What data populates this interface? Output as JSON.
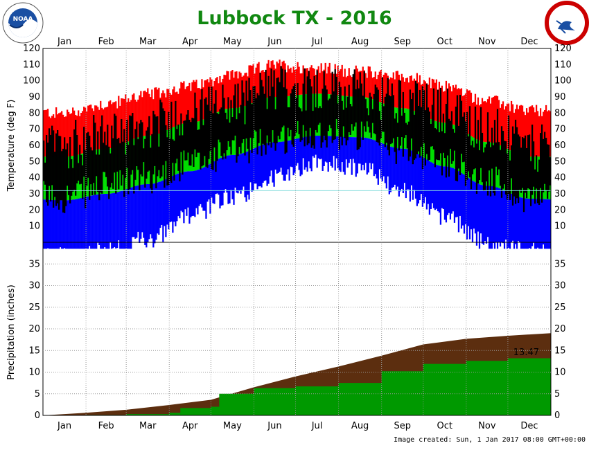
{
  "title": "Lubbock TX - 2016",
  "footer": "Image created: Sun, 1 Jan 2017 08:00 GMT+00:00",
  "colors": {
    "title": "#118811",
    "record_high": "#ff0000",
    "record_low": "#0000ff",
    "normal_range": "#00dd00",
    "observed": "#000000",
    "normal_precip": "#5c2e0f",
    "observed_precip": "#009900",
    "normal_line": "#88dddd"
  },
  "logos": {
    "left": "NOAA",
    "right": "NATIONAL WEATHER SERVICE"
  },
  "chart_data": [
    {
      "type": "bar",
      "ylabel": "Temperature (deg F)",
      "ylim": [
        0,
        120
      ],
      "yticks": [
        10,
        20,
        30,
        40,
        50,
        60,
        70,
        80,
        90,
        100,
        110,
        120
      ],
      "month_labels": [
        "Jan",
        "Feb",
        "Mar",
        "Apr",
        "May",
        "Jun",
        "Jul",
        "Aug",
        "Sep",
        "Oct",
        "Nov",
        "Dec"
      ],
      "series": [
        {
          "name": "record_high",
          "values_by_month": [
            78,
            84,
            90,
            95,
            102,
            108,
            106,
            104,
            101,
            95,
            86,
            80
          ]
        },
        {
          "name": "normal_high",
          "values_by_month": [
            53,
            58,
            66,
            74,
            83,
            90,
            92,
            90,
            83,
            74,
            62,
            53
          ]
        },
        {
          "name": "normal_low",
          "values_by_month": [
            26,
            30,
            36,
            44,
            54,
            62,
            66,
            65,
            58,
            47,
            35,
            27
          ]
        },
        {
          "name": "record_low",
          "values_by_month": [
            -2,
            0,
            8,
            22,
            34,
            46,
            55,
            52,
            38,
            22,
            5,
            0
          ]
        },
        {
          "name": "observed_high",
          "values_by_month": [
            60,
            66,
            72,
            80,
            86,
            95,
            96,
            92,
            88,
            82,
            70,
            58
          ]
        },
        {
          "name": "observed_low",
          "values_by_month": [
            28,
            34,
            40,
            48,
            56,
            64,
            68,
            66,
            58,
            50,
            38,
            28
          ]
        }
      ]
    },
    {
      "type": "area",
      "ylabel": "Precipitation (inches)",
      "ylim": [
        0,
        40
      ],
      "yticks": [
        0,
        5,
        10,
        15,
        20,
        25,
        30,
        35
      ],
      "month_labels": [
        "Jan",
        "Feb",
        "Mar",
        "Apr",
        "May",
        "Jun",
        "Jul",
        "Aug",
        "Sep",
        "Oct",
        "Nov",
        "Dec"
      ],
      "annotation": "13.47",
      "series": [
        {
          "name": "normal_cumulative",
          "x": [
            0,
            31,
            60,
            91,
            121,
            152,
            182,
            213,
            244,
            274,
            305,
            335,
            366
          ],
          "values": [
            0,
            0.6,
            1.3,
            2.4,
            3.6,
            6.5,
            9.0,
            11.3,
            13.8,
            16.4,
            17.7,
            18.4,
            19.0
          ]
        },
        {
          "name": "observed_cumulative",
          "x": [
            0,
            31,
            60,
            91,
            99,
            121,
            127,
            152,
            182,
            213,
            244,
            274,
            305,
            335,
            366
          ],
          "values": [
            0,
            0.1,
            0.3,
            0.6,
            1.7,
            2.0,
            5.0,
            6.3,
            6.7,
            7.5,
            10.2,
            11.9,
            12.6,
            13.2,
            13.47
          ]
        }
      ]
    }
  ]
}
